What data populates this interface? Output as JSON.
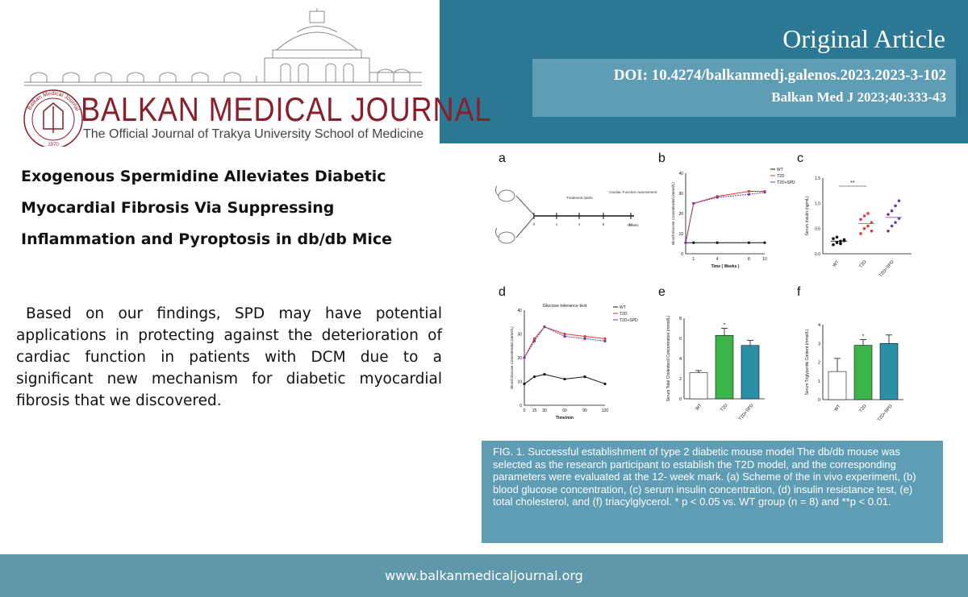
{
  "header": {
    "article_type": "Original Article",
    "doi": "DOI: 10.4274/balkanmedj.galenos.2023.2023-3-102",
    "citation": "Balkan Med J 2023;40:333-43"
  },
  "journal": {
    "name": "BALKAN MEDICAL JOURNAL",
    "subtitle": "The Official Journal of  Trakya University School of Medicine",
    "seal_text": "Balkan Medical Journal",
    "seal_year": "1970"
  },
  "article": {
    "title_lines": [
      "Exogenous Spermidine Alleviates Diabetic",
      "Myocardial Fibrosis Via Suppressing",
      "Inflammation and Pyroptosis in db/db Mice"
    ],
    "summary": "Based on our findings, SPD may have potential applications in protecting against the deterioration of cardiac function in patients with DCM due to a significant new mechanism for diabetic myocardial fibrosis that we discovered."
  },
  "figure": {
    "panel_labels": [
      "a",
      "b",
      "c",
      "d",
      "e",
      "f"
    ],
    "caption": "FIG. 1. Successful establishment of type 2 diabetic mouse model  The db/db mouse was selected as the research participant to establish the T2D model, and the corresponding parameters were evaluated at the 12- week mark. (a) Scheme of the in vivo experiment, (b) blood glucose concentration, (c) serum insulin concentration, (d) insulin resistance test, (e) total cholesterol, and (f) triacylglycerol. * p < 0.05 vs. WT group (n = 8) and **p < 0.01."
  },
  "chart_data": [
    {
      "panel": "a",
      "type": "diagram",
      "labels": [
        "Treatment starts",
        "Cardiac Function assessment",
        "Weeks"
      ],
      "timepoints": [
        "0",
        "1",
        "4",
        "8",
        "12"
      ]
    },
    {
      "panel": "b",
      "type": "line",
      "ylabel": "Blood Glucose Concentration (mmol/L)",
      "xlabel": "Time ( Weeks )",
      "x": [
        0,
        1,
        4,
        8,
        10
      ],
      "ylim": [
        0,
        40
      ],
      "yticks": [
        "0",
        "10",
        "20",
        "30",
        "40"
      ],
      "xticks": [
        "1",
        "4",
        "8",
        "10"
      ],
      "series": [
        {
          "name": "WT",
          "values": [
            5.5,
            5.5,
            5.5,
            5.5,
            5.5
          ],
          "color": "#111111"
        },
        {
          "name": "T2D",
          "values": [
            5.5,
            25,
            28.5,
            31,
            31
          ],
          "color": "#e53935"
        },
        {
          "name": "T2D+SPD",
          "values": [
            5.5,
            25,
            28,
            29.5,
            30.5
          ],
          "color": "#6a3d9a"
        }
      ]
    },
    {
      "panel": "c",
      "type": "scatter",
      "ylabel": "Serum Insulin (ng/mL)",
      "categories": [
        "WT",
        "T2D",
        "T2D+SPD"
      ],
      "ylim": [
        0,
        1.5
      ],
      "yticks": [
        "0.0",
        "0.5",
        "1.0",
        "1.5"
      ],
      "means": [
        0.25,
        0.6,
        0.72
      ],
      "points": [
        [
          0.18,
          0.22,
          0.25,
          0.28,
          0.3,
          0.33,
          0.2,
          0.26
        ],
        [
          0.4,
          0.5,
          0.55,
          0.62,
          0.68,
          0.75,
          0.8,
          0.45
        ],
        [
          0.45,
          0.55,
          0.62,
          0.7,
          0.78,
          0.85,
          0.95,
          1.05
        ]
      ],
      "colors": [
        "#111111",
        "#e53935",
        "#6a3d9a"
      ],
      "annotation": "**"
    },
    {
      "panel": "d",
      "type": "line",
      "title": "Glucose tolerance test",
      "ylabel": "Blood Glucose Concentration (mmol/L)",
      "xlabel": "Time/min",
      "x": [
        0,
        15,
        30,
        60,
        90,
        120
      ],
      "ylim": [
        0,
        40
      ],
      "yticks": [
        "0",
        "10",
        "20",
        "30",
        "40"
      ],
      "xticks": [
        "0",
        "15",
        "30",
        "60",
        "90",
        "120"
      ],
      "series": [
        {
          "name": "WT",
          "values": [
            9,
            12,
            13,
            11,
            12,
            9
          ],
          "color": "#111111"
        },
        {
          "name": "T2D",
          "values": [
            20,
            28,
            33,
            30,
            29,
            28
          ],
          "color": "#e53935"
        },
        {
          "name": "T2D+SPD",
          "values": [
            20,
            27,
            33,
            29,
            28,
            27
          ],
          "color": "#6a3d9a"
        }
      ]
    },
    {
      "panel": "e",
      "type": "bar",
      "ylabel": "Serum Total Cholesterol Concentration (mmol/L)",
      "categories": [
        "WT",
        "T2D",
        "T2D+SPD"
      ],
      "values": [
        2.6,
        6.3,
        5.3
      ],
      "errors": [
        0.2,
        0.7,
        0.5
      ],
      "ylim": [
        0,
        8
      ],
      "yticks": [
        "0",
        "2",
        "4",
        "6",
        "8"
      ],
      "colors": [
        "#ffffff",
        "#3bb54a",
        "#2b8fa8"
      ],
      "annotations": [
        "",
        "*",
        ""
      ]
    },
    {
      "panel": "f",
      "type": "bar",
      "ylabel": "Serum Triglyceride Content (mmol/L)",
      "categories": [
        "WT",
        "T2D",
        "T2D+SPD"
      ],
      "values": [
        1.5,
        2.9,
        3.0
      ],
      "errors": [
        0.7,
        0.3,
        0.45
      ],
      "ylim": [
        0,
        4
      ],
      "yticks": [
        "0",
        "1",
        "2",
        "3",
        "4"
      ],
      "colors": [
        "#ffffff",
        "#3bb54a",
        "#2b8fa8"
      ],
      "annotations": [
        "",
        "*",
        ""
      ]
    }
  ],
  "footer": {
    "url": "www.balkanmedicaljournal.org"
  }
}
